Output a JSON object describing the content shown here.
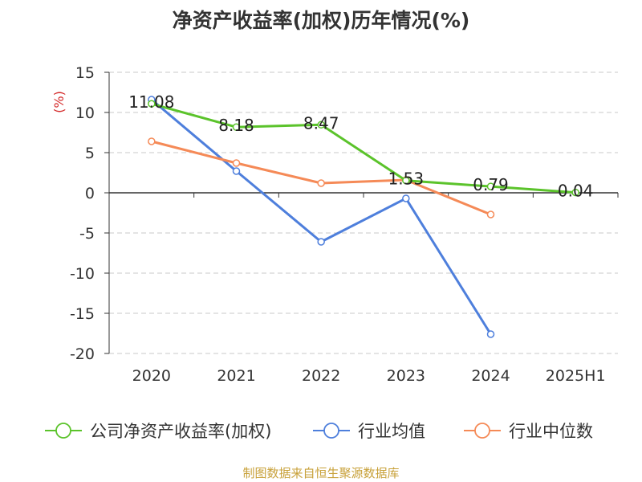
{
  "title": "净资产收益率(加权)历年情况(%)",
  "source": "制图数据来自恒生聚源数据库",
  "colors": {
    "company": "#5bc32b",
    "industry_avg": "#4e7fdc",
    "industry_median": "#f58a57",
    "grid": "#c8c8c8",
    "axis": "#333333",
    "unit": "#d42a2a",
    "source": "#c8a13a"
  },
  "chart_data": {
    "type": "line",
    "title": "净资产收益率(加权)历年情况(%)",
    "ylabel": "(%)",
    "ylim": [
      -20,
      15
    ],
    "yticks": [
      15,
      10,
      5,
      0,
      -5,
      -10,
      -15,
      -20
    ],
    "categories": [
      "2020",
      "2021",
      "2022",
      "2023",
      "2024",
      "2025H1"
    ],
    "grid": true,
    "legend_position": "bottom",
    "series": [
      {
        "name": "公司净资产收益率(加权)",
        "key": "company",
        "values": [
          11.08,
          8.18,
          8.47,
          1.53,
          0.79,
          0.04
        ],
        "labels": [
          "11.08",
          "8.18",
          "8.47",
          "1.53",
          "0.79",
          "0.04"
        ]
      },
      {
        "name": "行业均值",
        "key": "industry_avg",
        "values": [
          11.6,
          2.7,
          -6.1,
          -0.7,
          -17.6,
          null
        ]
      },
      {
        "name": "行业中位数",
        "key": "industry_median",
        "values": [
          6.4,
          3.7,
          1.2,
          1.6,
          -2.7,
          null
        ]
      }
    ]
  }
}
